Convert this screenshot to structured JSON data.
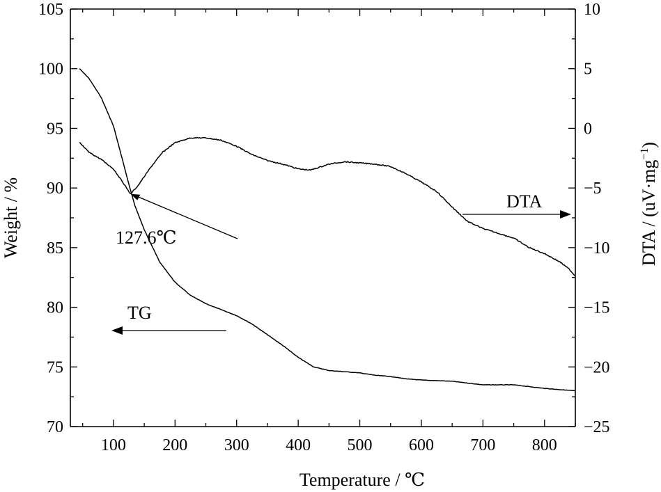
{
  "chart_data": {
    "type": "line",
    "xlabel": "Temperature / ℃",
    "ylabel_left": "Weight / %",
    "ylabel_right": "DTA / (uV·mg",
    "ylabel_right_sup": "−1",
    "ylabel_right_close": ")",
    "xlim": [
      30,
      850
    ],
    "ylim_left": [
      70,
      105
    ],
    "ylim_right": [
      -25,
      10
    ],
    "x_ticks": [
      100,
      200,
      300,
      400,
      500,
      600,
      700,
      800
    ],
    "x_tick_labels": [
      "100",
      "200",
      "300",
      "400",
      "500",
      "600",
      "700",
      "800"
    ],
    "y_left_ticks": [
      70,
      75,
      80,
      85,
      90,
      95,
      100,
      105
    ],
    "y_left_tick_labels": [
      "70",
      "75",
      "80",
      "85",
      "90",
      "95",
      "100",
      "105"
    ],
    "y_right_ticks": [
      -25,
      -20,
      -15,
      -10,
      -5,
      0,
      5,
      10
    ],
    "y_right_tick_labels": [
      "−25",
      "−20",
      "−15",
      "−10",
      "−5",
      "0",
      "5",
      "10"
    ],
    "grid": false,
    "series": [
      {
        "name": "TG",
        "axis": "left",
        "x": [
          45,
          60,
          80,
          100,
          115,
          125,
          135,
          150,
          175,
          200,
          225,
          250,
          275,
          300,
          325,
          350,
          375,
          400,
          425,
          450,
          475,
          500,
          525,
          550,
          575,
          600,
          650,
          700,
          750,
          800,
          850
        ],
        "y": [
          100,
          99.2,
          97.6,
          95.2,
          92.3,
          90.3,
          88.5,
          86.5,
          83.8,
          82.1,
          81.0,
          80.3,
          79.8,
          79.3,
          78.6,
          77.7,
          76.8,
          75.8,
          75.0,
          74.7,
          74.6,
          74.5,
          74.3,
          74.2,
          74.0,
          73.9,
          73.8,
          73.5,
          73.5,
          73.2,
          73.0
        ]
      },
      {
        "name": "DTA",
        "axis": "right",
        "x": [
          45,
          60,
          80,
          100,
          115,
          127.6,
          140,
          160,
          180,
          200,
          225,
          250,
          275,
          300,
          325,
          350,
          375,
          400,
          420,
          450,
          475,
          500,
          525,
          550,
          575,
          600,
          625,
          650,
          675,
          700,
          725,
          750,
          775,
          800,
          825,
          840,
          850
        ],
        "y": [
          -1.2,
          -2.0,
          -2.6,
          -3.4,
          -4.5,
          -5.5,
          -4.8,
          -3.3,
          -2.0,
          -1.2,
          -0.8,
          -0.8,
          -1.0,
          -1.5,
          -2.2,
          -2.7,
          -3.0,
          -3.4,
          -3.5,
          -3.0,
          -2.8,
          -2.9,
          -3.0,
          -3.2,
          -3.8,
          -4.5,
          -5.3,
          -6.6,
          -7.8,
          -8.4,
          -8.8,
          -9.2,
          -10.0,
          -10.5,
          -11.2,
          -11.8,
          -12.4
        ]
      }
    ],
    "annotations": [
      {
        "text": "127.6℃",
        "x": 127.6,
        "y_right": -5.5
      },
      {
        "text": "DTA",
        "arrow": "right"
      },
      {
        "text": "TG",
        "arrow": "left"
      }
    ]
  }
}
